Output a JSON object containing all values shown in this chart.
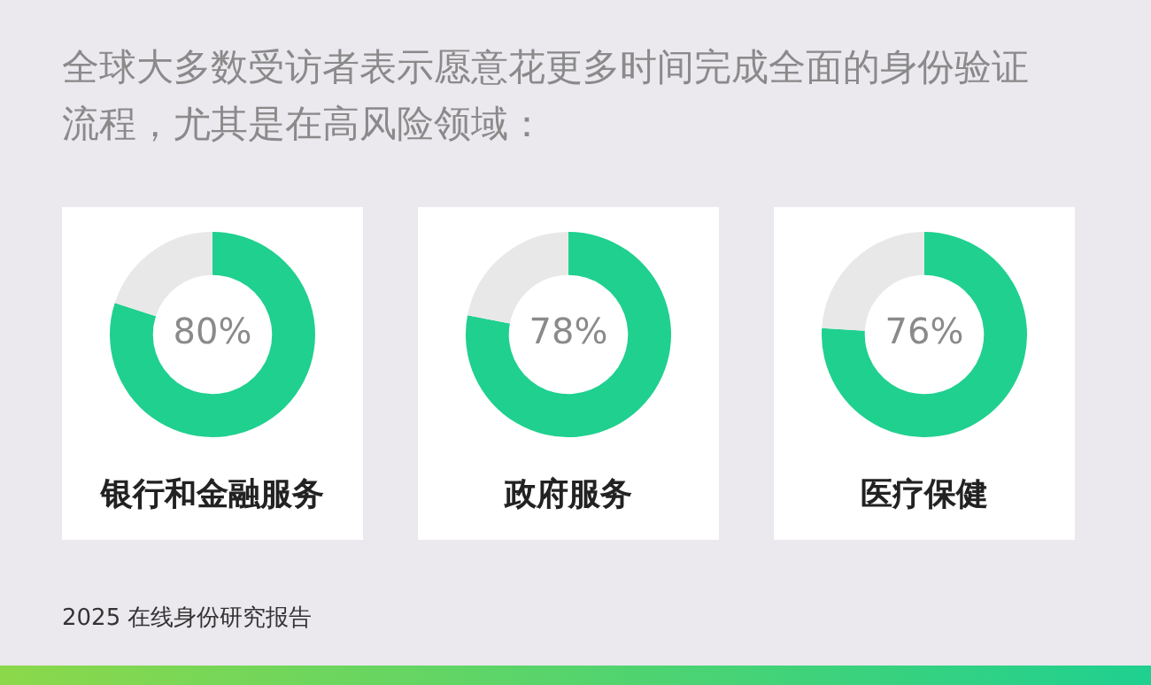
{
  "chart_data": [
    {
      "type": "other",
      "title": "全球大多数受访者表示愿意花更多时间完成全面的身份验证流程，尤其是在高风险领域：",
      "annotations": [
        "2025 在线身份研究报告"
      ]
    },
    {
      "type": "donut",
      "title": "银行和金融服务",
      "categories": [
        null,
        null
      ],
      "values": [
        80,
        20
      ],
      "colors": [
        "#1fd08f",
        "#e8e8e8"
      ],
      "value_labels": [
        "80%",
        null
      ]
    },
    {
      "type": "donut",
      "title": "政府服务",
      "categories": [
        null,
        null
      ],
      "values": [
        78,
        22
      ],
      "colors": [
        "#1fd08f",
        "#e8e8e8"
      ],
      "value_labels": [
        "78%",
        null
      ]
    },
    {
      "type": "donut",
      "title": "医疗保健",
      "categories": [
        null,
        null
      ],
      "values": [
        76,
        24
      ],
      "colors": [
        "#1fd08f",
        "#e8e8e8"
      ],
      "value_labels": [
        "76%",
        null
      ]
    }
  ]
}
